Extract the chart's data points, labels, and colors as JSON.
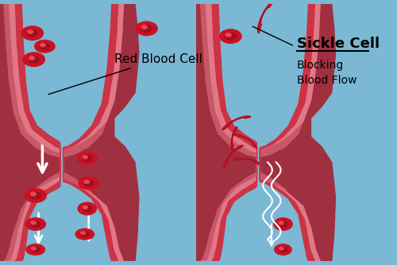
{
  "background_color": "#7ab8d4",
  "vessel_dark": "#a03040",
  "vessel_mid": "#c85868",
  "vessel_inner": "#e07888",
  "vessel_lumen": "#cc3344",
  "rbc_outer": "#cc1122",
  "rbc_dark": "#991122",
  "rbc_bright": "#ee4455",
  "arrow_color": "#ffffff",
  "label_color": "#000000",
  "title1": "Red Blood Cell",
  "title2": "Sickle Cell",
  "subtitle2": "Blocking\nBlood Flow",
  "title1_fontsize": 11,
  "title2_fontsize": 13,
  "subtitle2_fontsize": 10,
  "fig_width": 5.0,
  "fig_height": 3.33,
  "dpi": 100
}
